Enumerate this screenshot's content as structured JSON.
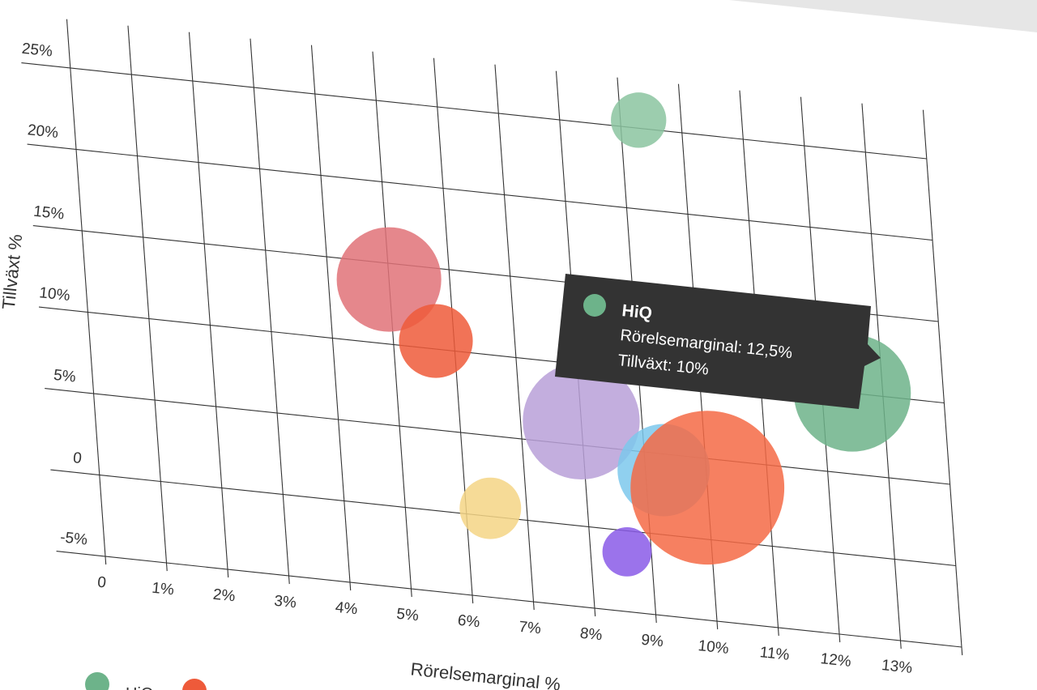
{
  "chart_data": {
    "type": "bubble",
    "xlabel": "Rörelsemarginal %",
    "ylabel": "Tillväxt %",
    "x_ticks": [
      "0",
      "1%",
      "2%",
      "3%",
      "4%",
      "5%",
      "6%",
      "7%",
      "8%",
      "9%",
      "10%",
      "11%",
      "12%",
      "13%"
    ],
    "y_ticks": [
      "-5%",
      "0",
      "5%",
      "10%",
      "15%",
      "20%",
      "25%"
    ],
    "xlim": [
      0,
      14
    ],
    "ylim": [
      -5.5,
      28
    ],
    "grid": true,
    "legend_position": "bottom-left",
    "series": [
      {
        "x": 9.3,
        "y": 25.5,
        "size": 0.45,
        "color": "#8bc4a0"
      },
      {
        "x": 5.0,
        "y": 14.0,
        "size": 0.85,
        "color": "#e07278"
      },
      {
        "x": 5.7,
        "y": 10.5,
        "size": 0.6,
        "color": "#ee5a3a"
      },
      {
        "x": 8.0,
        "y": 6.5,
        "size": 0.95,
        "color": "#b8a0d8"
      },
      {
        "x": 12.5,
        "y": 10.0,
        "size": 0.95,
        "color": "#6db38a"
      },
      {
        "x": 9.3,
        "y": 4.0,
        "size": 0.75,
        "color": "#7cc8ec"
      },
      {
        "x": 10.0,
        "y": 3.2,
        "size": 1.25,
        "color": "#f56a45"
      },
      {
        "x": 6.4,
        "y": 0.5,
        "size": 0.5,
        "color": "#f5d585"
      },
      {
        "x": 8.6,
        "y": -1.3,
        "size": 0.4,
        "color": "#8a5be8"
      }
    ]
  },
  "tooltip": {
    "name": "HiQ",
    "line1": "Rörelsemarginal: 12,5%",
    "line2": "Tillväxt: 10%",
    "color": "#6db38a"
  },
  "legend": {
    "items": [
      {
        "name": "HiQ",
        "color": "#6db38a"
      },
      {
        "name": "",
        "color": "#ee5a3a"
      }
    ]
  }
}
